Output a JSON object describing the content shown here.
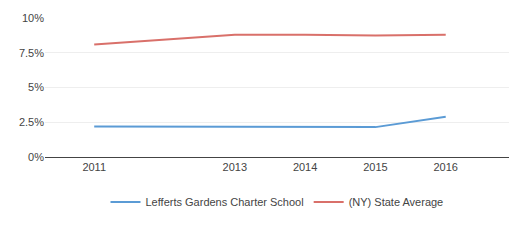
{
  "chart_data": {
    "type": "line",
    "x": [
      2011,
      2013,
      2014,
      2015,
      2016
    ],
    "series": [
      {
        "name": "Lefferts Gardens Charter School",
        "color": "#5b9bd5",
        "values": [
          2.2,
          2.2,
          2.2,
          2.15,
          2.9
        ]
      },
      {
        "name": "(NY) State Average",
        "color": "#d9706a",
        "values": [
          8.1,
          8.8,
          8.8,
          8.75,
          8.8
        ]
      }
    ],
    "xlim": [
      2010.3,
      2016.9
    ],
    "xticks": [
      2011,
      2013,
      2014,
      2015,
      2016
    ],
    "ylim": [
      0,
      10
    ],
    "yticks": [
      {
        "value": 0,
        "label": "0%"
      },
      {
        "value": 2.5,
        "label": "2.5%"
      },
      {
        "value": 5.0,
        "label": "5%"
      },
      {
        "value": 7.5,
        "label": "7.5%"
      },
      {
        "value": 10.0,
        "label": "10%"
      }
    ],
    "grid": "y",
    "legend": "bottom"
  }
}
